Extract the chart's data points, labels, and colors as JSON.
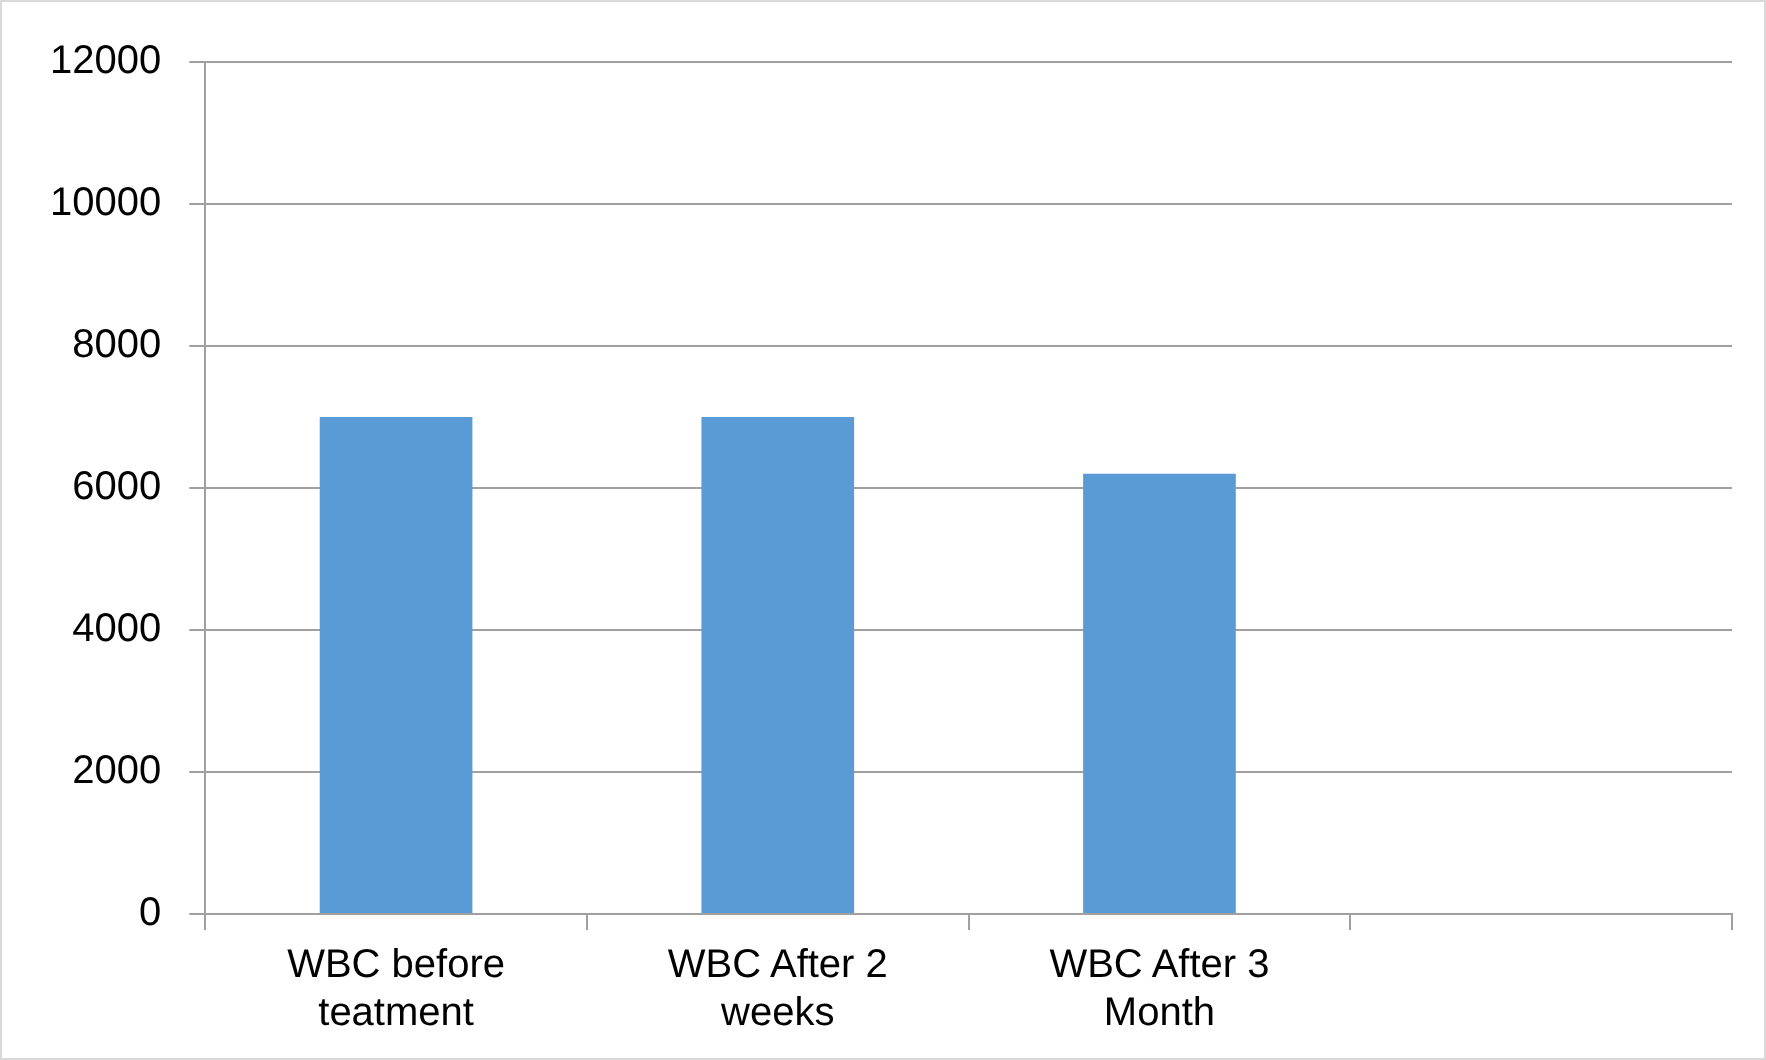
{
  "chart_data": {
    "type": "bar",
    "categories": [
      "WBC before teatment",
      "WBC After 2 weeks",
      "WBC After 3 Month",
      null
    ],
    "values": [
      7000,
      7000,
      6200,
      null
    ],
    "color": "#5b9bd5",
    "ylim": [
      0,
      12000
    ],
    "yticks": [
      0,
      2000,
      4000,
      6000,
      8000,
      10000,
      12000
    ],
    "grid": "y",
    "legend": false
  }
}
